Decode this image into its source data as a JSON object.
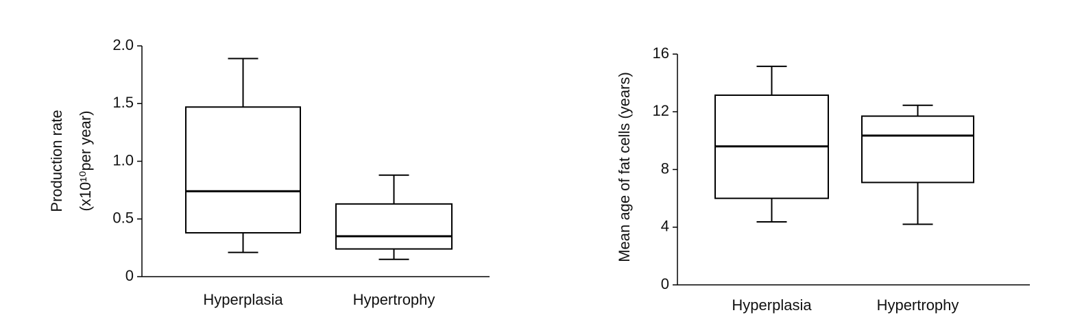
{
  "chart_data": [
    {
      "type": "box",
      "ylabel": [
        "Production rate",
        "(x10¹⁰per year)"
      ],
      "categories": [
        "Hyperplasia",
        "Hypertrophy"
      ],
      "boxes": [
        {
          "whisker_low": 0.21,
          "q1": 0.38,
          "median": 0.74,
          "q3": 1.47,
          "whisker_high": 1.89
        },
        {
          "whisker_low": 0.15,
          "q1": 0.24,
          "median": 0.35,
          "q3": 0.63,
          "whisker_high": 0.88
        }
      ],
      "color": "#000000",
      "ylim": [
        0,
        2
      ],
      "yticks": [
        0,
        0.5,
        {
          "value": 1,
          "label": "1.0"
        },
        1.5,
        {
          "value": 2,
          "label": "2.0"
        }
      ]
    },
    {
      "type": "box",
      "ylabel": [
        "Mean age of fat cells (years)"
      ],
      "categories": [
        "Hyperplasia",
        "Hypertrophy"
      ],
      "boxes": [
        {
          "whisker_low": 4.37,
          "q1": 6.0,
          "median": 9.6,
          "q3": 13.15,
          "whisker_high": 15.15
        },
        {
          "whisker_low": 4.2,
          "q1": 7.1,
          "median": 10.35,
          "q3": 11.7,
          "whisker_high": 12.45
        }
      ],
      "color": "#000000",
      "ylim": [
        0,
        16
      ],
      "yticks": [
        0,
        4,
        8,
        12,
        16
      ]
    }
  ]
}
